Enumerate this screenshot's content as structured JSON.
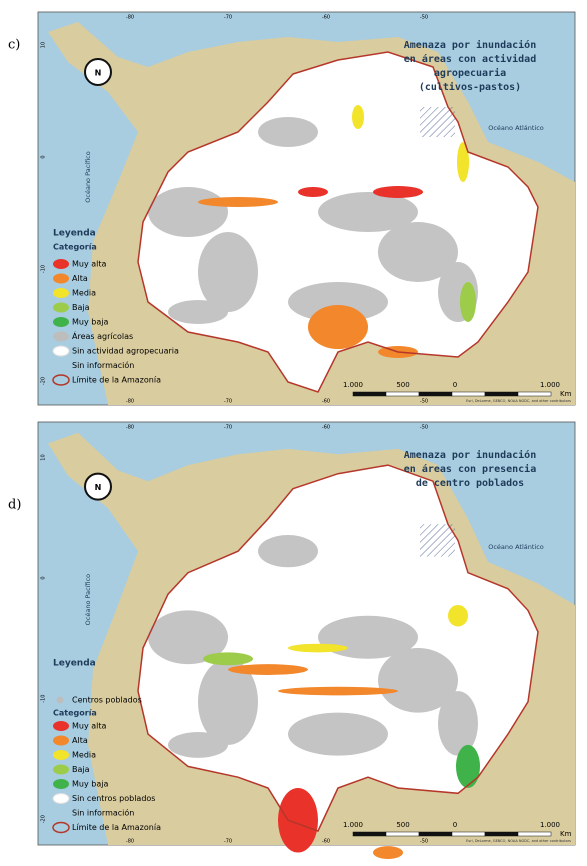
{
  "panels": [
    {
      "label": "c)",
      "title": [
        "Amenaza por inundación",
        "en áreas con actividad",
        "agropecuaria",
        "(cultivos-pastos)"
      ],
      "north": "N",
      "ocean_atlantic": "Océano Atlántico",
      "ocean_pacific": "Océano Pacífico",
      "lon_labels": [
        "-80",
        "-70",
        "-60",
        "-50"
      ],
      "lat_labels": [
        "10",
        "0",
        "-10",
        "-20"
      ],
      "legend": {
        "title": "Leyenda",
        "subtitle": "Categoría",
        "items": [
          {
            "label": "Muy alta",
            "color": "#e8322a"
          },
          {
            "label": "Alta",
            "color": "#f2872b"
          },
          {
            "label": "Media",
            "color": "#f2e32b"
          },
          {
            "label": "Baja",
            "color": "#9ccc4a"
          },
          {
            "label": "Muy baja",
            "color": "#3fb24a"
          },
          {
            "label": "Áreas agrícolas",
            "color": "#bdbdbd"
          },
          {
            "label": "Sin actividad agropecuaria",
            "color": "#ffffff"
          },
          {
            "label": "Sin información"
          },
          {
            "label": "Límite de la Amazonía",
            "outline": "#b5372a"
          }
        ]
      },
      "scale": {
        "labels": [
          "1.000",
          "500",
          "0",
          "1.000"
        ],
        "unit": "Km"
      },
      "credit": "Esri, DeLorme, GEBCO, NOAA NGDC, and other contributors"
    },
    {
      "label": "d)",
      "title": [
        "Amenaza por inundación",
        "en áreas con presencia",
        "de centro poblados"
      ],
      "north": "N",
      "ocean_atlantic": "Océano Atlántico",
      "ocean_pacific": "Océano Pacífico",
      "lon_labels": [
        "-80",
        "-70",
        "-60",
        "-50"
      ],
      "lat_labels": [
        "10",
        "0",
        "-10",
        "-20"
      ],
      "legend": {
        "title": "Leyenda",
        "points": "Centros poblados",
        "subtitle": "Categoría",
        "items": [
          {
            "label": "Muy alta",
            "color": "#e8322a"
          },
          {
            "label": "Alta",
            "color": "#f2872b"
          },
          {
            "label": "Media",
            "color": "#f2e32b"
          },
          {
            "label": "Baja",
            "color": "#9ccc4a"
          },
          {
            "label": "Muy baja",
            "color": "#3fb24a"
          },
          {
            "label": "Sin centros poblados",
            "color": "#ffffff"
          },
          {
            "label": "Sin información"
          },
          {
            "label": "Límite de la Amazonía",
            "outline": "#b5372a"
          }
        ]
      },
      "scale": {
        "labels": [
          "1.000",
          "500",
          "0",
          "1.000"
        ],
        "unit": "Km"
      },
      "credit": "Esri, DeLorme, GEBCO, NOAA NGDC, and other contributors"
    }
  ]
}
